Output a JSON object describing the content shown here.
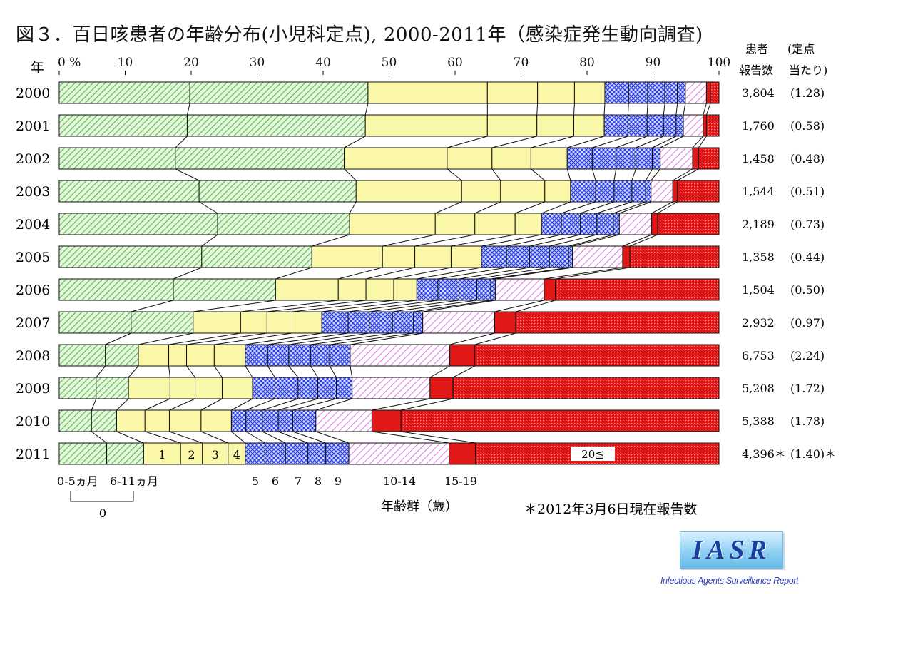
{
  "title": "図３．百日咳患者の年齢分布(小児科定点), 2000-2011年（感染症発生動向調査)",
  "header": {
    "year_label": "年",
    "cases_line1": "患者",
    "cases_line2": "報告数",
    "rate_line1": "(定点",
    "rate_line2": "当たり)"
  },
  "footnote": "＊2012年3月6日現在報告数",
  "logo": {
    "text": "IASR",
    "subtitle": "Infectious Agents Surveillance Report"
  },
  "chart_data": {
    "type": "bar",
    "orientation": "horizontal-stacked-100",
    "x_ticks": [
      "0 %",
      "10",
      "20",
      "30",
      "40",
      "50",
      "60",
      "70",
      "80",
      "90",
      "100"
    ],
    "xlim": [
      0,
      100
    ],
    "xlabel": "年齢群（歳）",
    "categories": [
      "2000",
      "2001",
      "2002",
      "2003",
      "2004",
      "2005",
      "2006",
      "2007",
      "2008",
      "2009",
      "2010",
      "2011"
    ],
    "cases": [
      "3,804",
      "1,760",
      "1,458",
      "1,544",
      "2,189",
      "1,358",
      "1,504",
      "2,932",
      "6,753",
      "5,208",
      "5,388",
      "4,396＊"
    ],
    "rates": [
      "(1.28)",
      "(0.58)",
      "(0.48)",
      "(0.51)",
      "(0.73)",
      "(0.44)",
      "(0.50)",
      "(0.97)",
      "(2.24)",
      "(1.72)",
      "(1.78)",
      "(1.40)＊"
    ],
    "age_groups": [
      {
        "key": "0-5m",
        "label": "0-5ヵ月",
        "fill": "green"
      },
      {
        "key": "6-11m",
        "label": "6-11ヵ月",
        "fill": "green"
      },
      {
        "key": "1",
        "label": "1",
        "fill": "yellow"
      },
      {
        "key": "2",
        "label": "2",
        "fill": "yellow"
      },
      {
        "key": "3",
        "label": "3",
        "fill": "yellow"
      },
      {
        "key": "4",
        "label": "4",
        "fill": "yellow"
      },
      {
        "key": "5",
        "label": "5",
        "fill": "blue"
      },
      {
        "key": "6",
        "label": "6",
        "fill": "blue"
      },
      {
        "key": "7",
        "label": "7",
        "fill": "blue"
      },
      {
        "key": "8",
        "label": "8",
        "fill": "blue"
      },
      {
        "key": "9",
        "label": "9",
        "fill": "blue"
      },
      {
        "key": "10-14",
        "label": "10-14",
        "fill": "magenta"
      },
      {
        "key": "15-19",
        "label": "15-19",
        "fill": "red"
      },
      {
        "key": "20+",
        "label": "20≦",
        "fill": "red-dots"
      }
    ],
    "age_zero_label": "0",
    "cumulative_boundaries": [
      [
        19.8,
        46.8,
        64.9,
        72.5,
        78.1,
        82.7,
        86.3,
        89.2,
        91.8,
        93.7,
        94.9,
        98.1,
        98.7,
        100
      ],
      [
        19.4,
        46.4,
        64.9,
        72.4,
        78.0,
        82.6,
        86.2,
        89.1,
        91.6,
        93.5,
        94.6,
        97.6,
        98.1,
        100
      ],
      [
        17.6,
        43.2,
        58.8,
        65.6,
        71.5,
        77.0,
        80.8,
        84.4,
        87.4,
        89.9,
        91.1,
        96.0,
        96.9,
        100
      ],
      [
        21.2,
        45.0,
        61.0,
        66.9,
        73.6,
        77.5,
        81.3,
        84.1,
        86.8,
        88.9,
        89.7,
        93.0,
        93.7,
        100
      ],
      [
        24.0,
        44.0,
        57.0,
        63.0,
        69.1,
        73.1,
        76.1,
        79.0,
        81.5,
        84.0,
        84.9,
        89.8,
        90.7,
        100
      ],
      [
        21.6,
        38.3,
        49.0,
        53.9,
        59.4,
        64.0,
        67.8,
        71.3,
        74.3,
        77.2,
        77.8,
        85.4,
        86.5,
        100
      ],
      [
        17.3,
        32.8,
        42.3,
        46.5,
        50.7,
        54.2,
        57.4,
        60.6,
        63.3,
        65.4,
        66.1,
        73.5,
        75.2,
        100
      ],
      [
        10.9,
        20.3,
        27.5,
        31.5,
        35.3,
        39.8,
        43.8,
        47.0,
        50.5,
        53.7,
        55.1,
        66.0,
        69.2,
        100
      ],
      [
        7.0,
        12.0,
        16.6,
        19.3,
        23.5,
        28.2,
        31.6,
        34.8,
        38.1,
        41.0,
        44.1,
        59.2,
        63.0,
        100
      ],
      [
        5.6,
        10.5,
        16.8,
        20.6,
        24.7,
        29.3,
        32.7,
        36.2,
        39.2,
        42.0,
        44.4,
        56.2,
        59.7,
        100
      ],
      [
        4.9,
        8.7,
        13.0,
        16.7,
        21.5,
        26.1,
        28.3,
        30.8,
        33.2,
        35.4,
        38.9,
        47.4,
        51.8,
        100
      ],
      [
        7.2,
        12.8,
        18.4,
        21.7,
        25.6,
        28.2,
        31.2,
        34.3,
        37.7,
        40.4,
        43.9,
        59.1,
        63.1,
        100
      ]
    ]
  }
}
